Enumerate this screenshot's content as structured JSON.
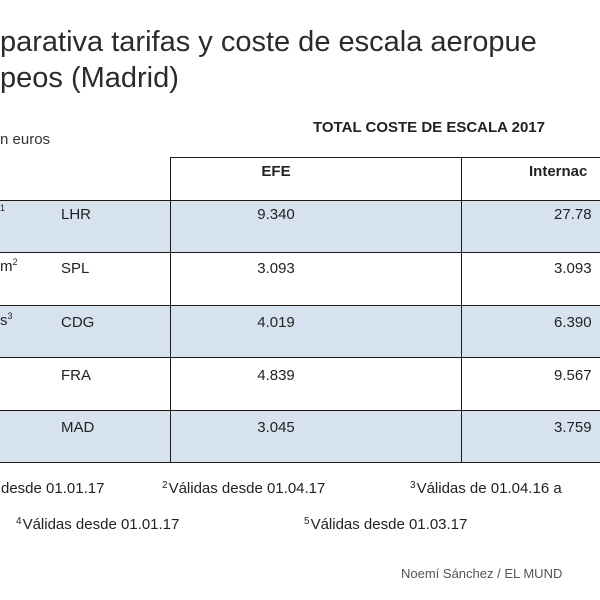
{
  "title": {
    "line1": "parativa tarifas y coste de escala aeropue",
    "line2": "peos (Madrid)"
  },
  "units": "n euros",
  "section_header": "TOTAL COSTE DE ESCALA 2017",
  "columns": [
    "EFE",
    "Internac"
  ],
  "rows": [
    {
      "city_fragment": "",
      "footnote": "1",
      "code": "LHR",
      "efe": "9.340",
      "intl": "27.78"
    },
    {
      "city_fragment": "m",
      "footnote": "2",
      "code": "SPL",
      "efe": "3.093",
      "intl": "3.093"
    },
    {
      "city_fragment": "s",
      "footnote": "3",
      "code": "CDG",
      "efe": "4.019",
      "intl": "6.390"
    },
    {
      "city_fragment": "",
      "footnote": "",
      "code": "FRA",
      "efe": "4.839",
      "intl": "9.567"
    },
    {
      "city_fragment": "",
      "footnote": "",
      "code": "MAD",
      "efe": "3.045",
      "intl": "3.759"
    }
  ],
  "footnotes": {
    "f1": {
      "num": "",
      "text": "desde 01.01.17"
    },
    "f2": {
      "num": "2",
      "text": "Válidas desde 01.04.17"
    },
    "f3": {
      "num": "3",
      "text": "Válidas de 01.04.16 a"
    },
    "f4": {
      "num": "4",
      "text": "Válidas desde 01.01.17"
    },
    "f5": {
      "num": "5",
      "text": "Válidas desde 01.03.17"
    }
  },
  "credit": "Noemí Sánchez / EL MUND",
  "colors": {
    "row_highlight": "#d6e3ee",
    "rule": "#1a1a1a"
  }
}
